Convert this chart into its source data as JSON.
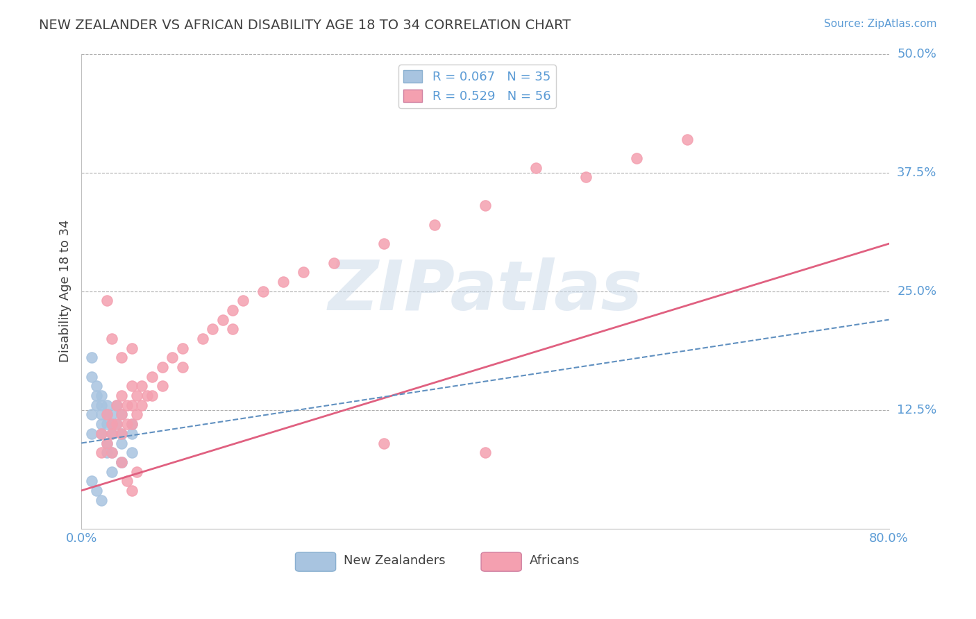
{
  "title": "NEW ZEALANDER VS AFRICAN DISABILITY AGE 18 TO 34 CORRELATION CHART",
  "source_text": "Source: ZipAtlas.com",
  "ylabel": "Disability Age 18 to 34",
  "xlim": [
    0.0,
    0.8
  ],
  "ylim": [
    0.0,
    0.5
  ],
  "ytick_labels": [
    "12.5%",
    "25.0%",
    "37.5%",
    "50.0%"
  ],
  "ytick_values": [
    0.125,
    0.25,
    0.375,
    0.5
  ],
  "title_color": "#404040",
  "axis_color": "#5b9bd5",
  "grid_color": "#b0b0b0",
  "nz_color": "#a8c4e0",
  "african_color": "#f4a0b0",
  "nz_R": 0.067,
  "nz_N": 35,
  "african_R": 0.529,
  "african_N": 56,
  "nz_scatter_x": [
    0.01,
    0.01,
    0.015,
    0.02,
    0.02,
    0.02,
    0.025,
    0.025,
    0.025,
    0.03,
    0.03,
    0.03,
    0.03,
    0.035,
    0.035,
    0.04,
    0.04,
    0.04,
    0.04,
    0.05,
    0.05,
    0.05,
    0.01,
    0.01,
    0.015,
    0.015,
    0.02,
    0.02,
    0.025,
    0.01,
    0.015,
    0.02,
    0.03,
    0.04,
    0.025
  ],
  "nz_scatter_y": [
    0.12,
    0.1,
    0.13,
    0.14,
    0.12,
    0.1,
    0.13,
    0.11,
    0.09,
    0.12,
    0.11,
    0.1,
    0.08,
    0.13,
    0.11,
    0.12,
    0.1,
    0.09,
    0.07,
    0.11,
    0.1,
    0.08,
    0.18,
    0.16,
    0.15,
    0.14,
    0.13,
    0.11,
    0.12,
    0.05,
    0.04,
    0.03,
    0.06,
    0.07,
    0.08
  ],
  "african_scatter_x": [
    0.02,
    0.02,
    0.025,
    0.025,
    0.03,
    0.03,
    0.03,
    0.035,
    0.035,
    0.04,
    0.04,
    0.04,
    0.045,
    0.045,
    0.05,
    0.05,
    0.05,
    0.055,
    0.055,
    0.06,
    0.06,
    0.065,
    0.07,
    0.07,
    0.08,
    0.08,
    0.09,
    0.1,
    0.1,
    0.12,
    0.13,
    0.14,
    0.15,
    0.15,
    0.16,
    0.18,
    0.2,
    0.22,
    0.25,
    0.3,
    0.35,
    0.4,
    0.45,
    0.5,
    0.55,
    0.6,
    0.025,
    0.03,
    0.04,
    0.05,
    0.3,
    0.4,
    0.04,
    0.05,
    0.055,
    0.045
  ],
  "african_scatter_y": [
    0.1,
    0.08,
    0.12,
    0.09,
    0.11,
    0.1,
    0.08,
    0.13,
    0.11,
    0.14,
    0.12,
    0.1,
    0.13,
    0.11,
    0.15,
    0.13,
    0.11,
    0.14,
    0.12,
    0.15,
    0.13,
    0.14,
    0.16,
    0.14,
    0.17,
    0.15,
    0.18,
    0.19,
    0.17,
    0.2,
    0.21,
    0.22,
    0.23,
    0.21,
    0.24,
    0.25,
    0.26,
    0.27,
    0.28,
    0.3,
    0.32,
    0.34,
    0.38,
    0.37,
    0.39,
    0.41,
    0.24,
    0.2,
    0.07,
    0.04,
    0.09,
    0.08,
    0.18,
    0.19,
    0.06,
    0.05
  ],
  "nz_line_x": [
    0.0,
    0.8
  ],
  "nz_line_y": [
    0.09,
    0.22
  ],
  "african_line_x": [
    0.0,
    0.8
  ],
  "african_line_y": [
    0.04,
    0.3
  ],
  "watermark_text": "ZIPatlas",
  "background_color": "#ffffff",
  "legend_border_color": "#d0d0d0"
}
